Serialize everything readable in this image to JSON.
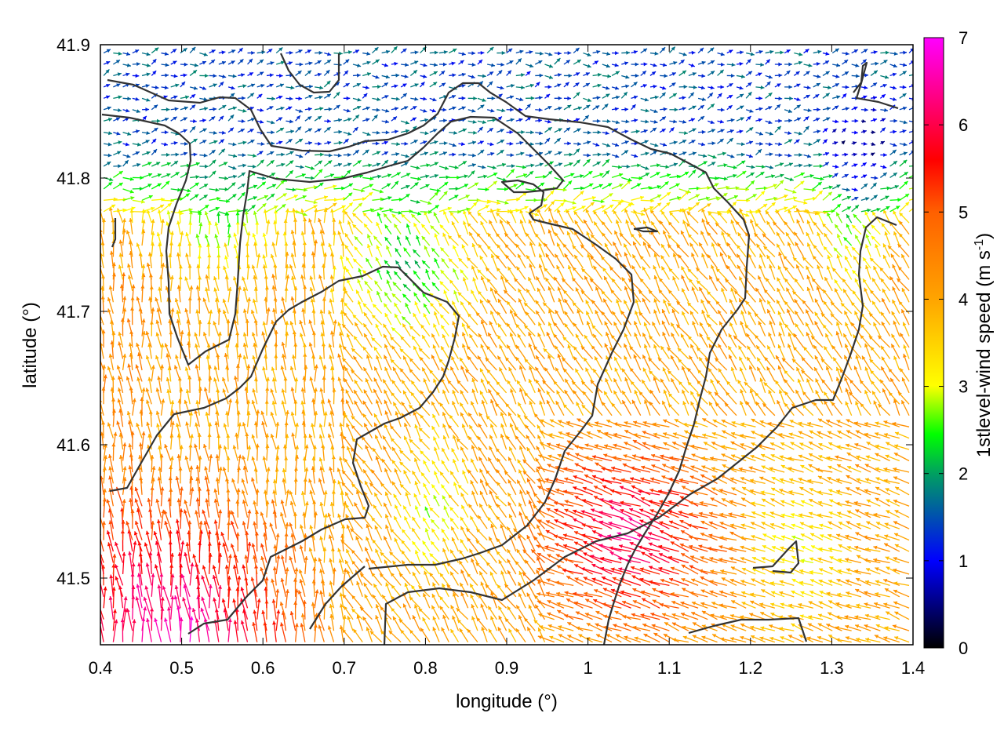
{
  "chart_data": {
    "type": "vector-field",
    "xlabel": "longitude (°)",
    "ylabel": "latitude (°)",
    "xlim": [
      0.4,
      1.4
    ],
    "ylim": [
      41.45,
      41.9
    ],
    "x_ticks": [
      "0.4",
      "0.5",
      "0.6",
      "0.7",
      "0.8",
      "0.9",
      "1",
      "1.1",
      "1.2",
      "1.3",
      "1.4"
    ],
    "y_ticks": [
      "41.5",
      "41.6",
      "41.7",
      "41.8",
      "41.9"
    ],
    "colorbar": {
      "label_main": "1stlevel-wind speed (m s",
      "label_sup": "-1",
      "label_end": ")",
      "range": [
        0,
        7
      ],
      "ticks": [
        "0",
        "1",
        "2",
        "3",
        "4",
        "5",
        "6",
        "7"
      ],
      "colors": [
        "#000000",
        "#0000ff",
        "#00ff00",
        "#ffff00",
        "#ffa500",
        "#ff0000",
        "#ff00ff"
      ]
    },
    "grid": false,
    "speed_regions": [
      {
        "region": "north (lat > 41.78)",
        "speed_range": [
          0.5,
          2.5
        ]
      },
      {
        "region": "central-north band",
        "speed_range": [
          1.5,
          3.5
        ]
      },
      {
        "region": "south-east (around lon 1.05, lat 41.55)",
        "speed_range": [
          4.5,
          6.5
        ]
      },
      {
        "region": "south-west corner (around lon 0.5, lat 41.46)",
        "speed_range": [
          5.5,
          7
        ]
      }
    ],
    "contour_count": 9
  }
}
